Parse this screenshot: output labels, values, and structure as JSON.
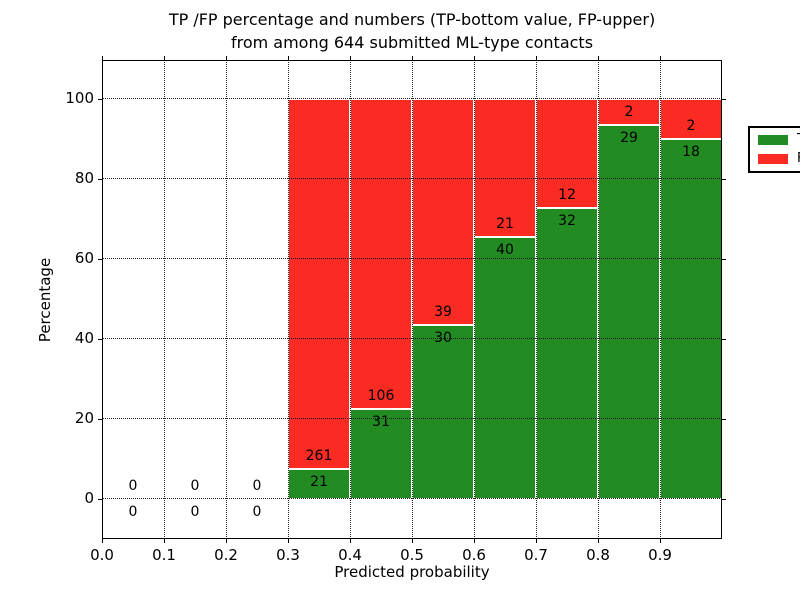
{
  "chart_data": {
    "type": "bar",
    "stacked": true,
    "title_line1": "TP /FP percentage and numbers (TP-bottom value, FP-upper)",
    "title_line2": "from among 644 submitted ML-type contacts",
    "xlabel": "Predicted probability",
    "ylabel": "Percentage",
    "xlim": [
      0.0,
      1.0
    ],
    "ylim": [
      -10,
      110
    ],
    "x_tick_labels": [
      "0.0",
      "0.1",
      "0.2",
      "0.3",
      "0.4",
      "0.5",
      "0.6",
      "0.7",
      "0.8",
      "0.9"
    ],
    "y_tick_values": [
      0,
      20,
      40,
      60,
      80,
      100
    ],
    "grid": "dotted-black-both-axes",
    "bar_unit": "percentage of bin stacked to 100",
    "label_rule": "TP count below TP/FP boundary, FP count above boundary",
    "total_contacts": 644,
    "bin_width": 0.1,
    "bins": [
      {
        "x": 0.0,
        "tp": 0,
        "fp": 0
      },
      {
        "x": 0.1,
        "tp": 0,
        "fp": 0
      },
      {
        "x": 0.2,
        "tp": 0,
        "fp": 0
      },
      {
        "x": 0.3,
        "tp": 21,
        "fp": 261
      },
      {
        "x": 0.4,
        "tp": 31,
        "fp": 106
      },
      {
        "x": 0.5,
        "tp": 30,
        "fp": 39
      },
      {
        "x": 0.6,
        "tp": 40,
        "fp": 21
      },
      {
        "x": 0.7,
        "tp": 32,
        "fp": 12
      },
      {
        "x": 0.8,
        "tp": 29,
        "fp": 2
      },
      {
        "x": 0.9,
        "tp": 18,
        "fp": 2
      }
    ],
    "legend": {
      "position": "upper right",
      "entries": [
        {
          "label": "TP",
          "color": "#228b22"
        },
        {
          "label": "FP",
          "color": "#fa2b23"
        }
      ]
    }
  },
  "colors": {
    "tp": "#228b22",
    "fp": "#fa2b23",
    "background": "#ffffff",
    "frame": "#000000"
  }
}
